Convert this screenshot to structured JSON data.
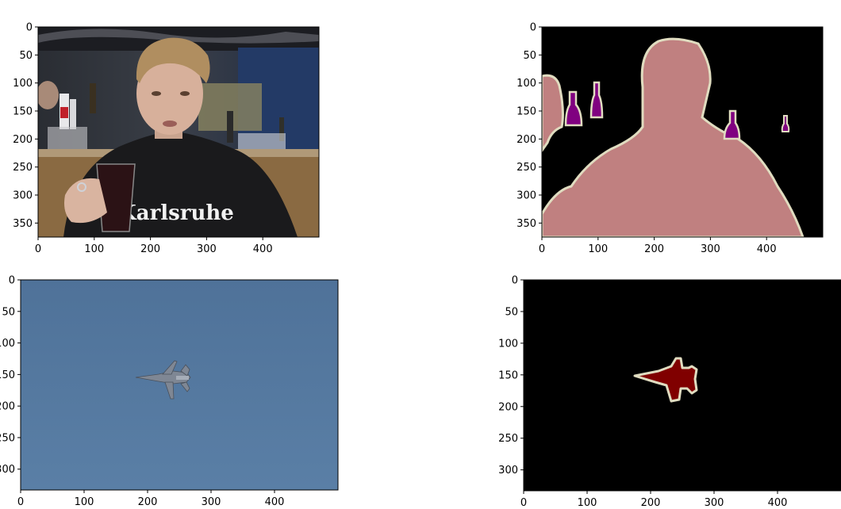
{
  "figure": {
    "layout": "2x2 grid of image panels (matplotlib imshow)",
    "colors": {
      "background": "#ffffff",
      "mask_bg": "#000000",
      "outline": "#e0dcc0",
      "person": "#c08080",
      "bottle": "#800080",
      "aeroplane": "#800000",
      "sky": "#5478a0",
      "room": "#2c2c30",
      "hoodie": "#1a1a1c"
    }
  },
  "chart_data": [
    {
      "type": "image",
      "name": "panel-photo-person",
      "content": "photo: man in black hoodie holding a glass, bottles on shelves behind",
      "shirt_text": "Karlsruhe",
      "image_size": [
        500,
        375
      ],
      "xlim": [
        0,
        500
      ],
      "ylim": [
        375,
        0
      ],
      "xticks": [
        0,
        100,
        200,
        300,
        400
      ],
      "yticks": [
        0,
        50,
        100,
        150,
        200,
        250,
        300,
        350
      ],
      "xlabel": "",
      "ylabel": ""
    },
    {
      "type": "image",
      "name": "panel-mask-person",
      "content": "segmentation mask: person and bottles with light outlines on black",
      "classes": [
        "person",
        "bottle"
      ],
      "image_size": [
        500,
        375
      ],
      "xlim": [
        0,
        500
      ],
      "ylim": [
        375,
        0
      ],
      "xticks": [
        0,
        100,
        200,
        300,
        400
      ],
      "yticks": [
        0,
        50,
        100,
        150,
        200,
        250,
        300,
        350
      ],
      "xlabel": "",
      "ylabel": ""
    },
    {
      "type": "image",
      "name": "panel-photo-jet",
      "content": "photo: fighter jet in flight against a blue sky",
      "image_size": [
        500,
        333
      ],
      "xlim": [
        0,
        500
      ],
      "ylim": [
        333,
        0
      ],
      "xticks": [
        0,
        100,
        200,
        300,
        400
      ],
      "yticks": [
        0,
        50,
        100,
        150,
        200,
        250,
        300
      ],
      "xlabel": "",
      "ylabel": ""
    },
    {
      "type": "image",
      "name": "panel-mask-jet",
      "content": "segmentation mask: aeroplane in dark red with light outline on black",
      "classes": [
        "aeroplane"
      ],
      "image_size": [
        500,
        333
      ],
      "xlim": [
        0,
        500
      ],
      "ylim": [
        333,
        0
      ],
      "xticks": [
        0,
        100,
        200,
        300,
        400
      ],
      "yticks": [
        0,
        50,
        100,
        150,
        200,
        250,
        300
      ],
      "xlabel": "",
      "ylabel": ""
    }
  ]
}
